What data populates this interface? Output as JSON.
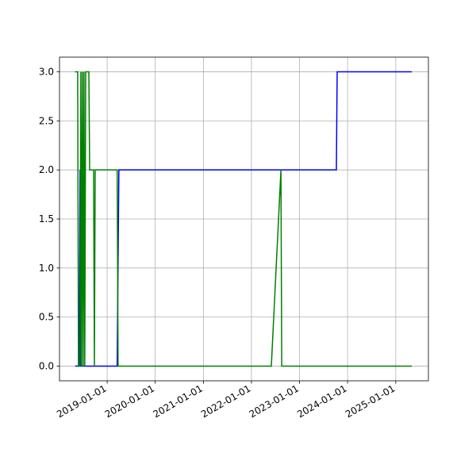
{
  "chart_data": {
    "type": "line",
    "xlim": [
      "2018-01-04",
      "2025-09-06"
    ],
    "xticks": [
      "2019-01-01",
      "2020-01-01",
      "2021-01-01",
      "2022-01-01",
      "2023-01-01",
      "2024-01-01",
      "2025-01-01"
    ],
    "ylim": [
      -0.15,
      3.15
    ],
    "yticks": [
      {
        "value": 0,
        "label": "0.0"
      },
      {
        "value": 0.5,
        "label": "0.5"
      },
      {
        "value": 1,
        "label": "1.0"
      },
      {
        "value": 1.5,
        "label": "1.5"
      },
      {
        "value": 2,
        "label": "2.0"
      },
      {
        "value": 2.5,
        "label": "2.5"
      },
      {
        "value": 3,
        "label": "3.0"
      }
    ],
    "grid": true,
    "series": [
      {
        "color": "#0000ff",
        "x": [
          "2018-05-03",
          "2018-06-03",
          "2018-06-09",
          "2018-06-15",
          "2019-03-18",
          "2019-03-31",
          "2023-10-08",
          "2023-10-14",
          "2025-05-03"
        ],
        "values": [
          0,
          0,
          2,
          0,
          0,
          2,
          2,
          3,
          3
        ]
      },
      {
        "color": "#008000",
        "x": [
          "2018-05-03",
          "2018-05-22",
          "2018-05-28",
          "2018-06-09",
          "2018-06-15",
          "2018-06-21",
          "2018-06-27",
          "2018-07-03",
          "2018-07-09",
          "2018-07-15",
          "2018-07-22",
          "2018-08-15",
          "2018-08-21",
          "2018-09-20",
          "2018-09-26",
          "2018-10-02",
          "2019-03-18",
          "2019-03-25",
          "2022-06-01",
          "2022-08-13",
          "2022-08-19",
          "2025-05-03"
        ],
        "values": [
          3,
          3,
          0,
          0,
          3,
          0,
          3,
          0,
          3,
          0,
          3,
          3,
          2,
          2,
          0,
          2,
          2,
          0,
          0,
          2,
          0,
          0
        ]
      }
    ]
  }
}
